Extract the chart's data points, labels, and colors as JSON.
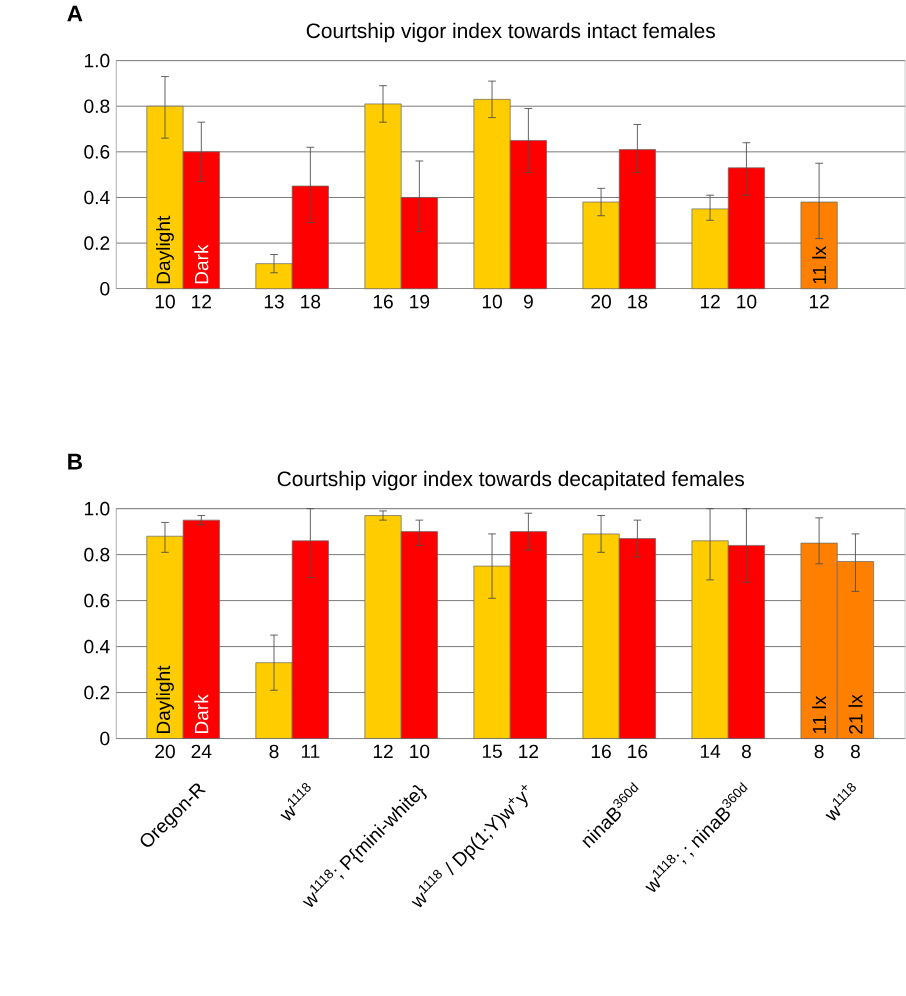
{
  "chart_data": [
    {
      "type": "bar",
      "title": "Courtship vigor index towards intact females",
      "annotations": [
        "A"
      ],
      "categories": [
        "10",
        "12",
        "13",
        "18",
        "16",
        "19",
        "10",
        "9",
        "20",
        "18",
        "12",
        "10",
        "12"
      ],
      "ylim": [
        0,
        1
      ],
      "yticks": [
        0,
        0.2,
        0.4,
        0.6,
        0.8,
        {
          "value": 1,
          "label": "1.0"
        }
      ],
      "grid": "y",
      "series": [
        {
          "name": "Daylight",
          "color": "#ffcc00",
          "values": [
            0.8,
            null,
            0.11,
            null,
            0.81,
            null,
            0.83,
            null,
            0.38,
            null,
            0.35,
            null,
            null
          ],
          "errors": [
            [
              0.66,
              0.93
            ],
            null,
            [
              0.07,
              0.15
            ],
            null,
            [
              0.73,
              0.89
            ],
            null,
            [
              0.75,
              0.91
            ],
            null,
            [
              0.32,
              0.44
            ],
            null,
            [
              0.3,
              0.41
            ],
            null,
            null
          ]
        },
        {
          "name": "Dark",
          "color": "#ff0000",
          "values": [
            null,
            0.6,
            null,
            0.45,
            null,
            0.4,
            null,
            0.65,
            null,
            0.61,
            null,
            0.53,
            null
          ],
          "errors": [
            null,
            [
              0.47,
              0.73
            ],
            null,
            [
              0.29,
              0.62
            ],
            null,
            [
              0.25,
              0.56
            ],
            null,
            [
              0.51,
              0.79
            ],
            null,
            [
              0.51,
              0.72
            ],
            null,
            [
              0.41,
              0.64
            ],
            null
          ]
        },
        {
          "name": "11 lx",
          "color": "#ff8000",
          "values": [
            null,
            null,
            null,
            null,
            null,
            null,
            null,
            null,
            null,
            null,
            null,
            null,
            0.38
          ],
          "errors": [
            null,
            null,
            null,
            null,
            null,
            null,
            null,
            null,
            null,
            null,
            null,
            null,
            [
              0.22,
              0.55
            ]
          ]
        }
      ]
    },
    {
      "type": "bar",
      "title": "Courtship vigor index towards decapitated females",
      "annotations": [
        "B",
        "Oregon-R",
        "w$^{1118}$",
        "w$^{1118}$; P{mini-white}",
        "w$^{1118}$ / Dp(1;Y)w$^{+}$y$^{+}$",
        "ninaB$^{360d}$",
        "w$^{1118}$; ; ninaB$^{360d}$",
        "w$^{1118}$"
      ],
      "categories": [
        "20",
        "24",
        "8",
        "11",
        "12",
        "10",
        "15",
        "12",
        "16",
        "16",
        "14",
        "8",
        "8",
        "8"
      ],
      "ylim": [
        0,
        1
      ],
      "yticks": [
        0,
        0.2,
        0.4,
        0.6,
        0.8,
        {
          "value": 1,
          "label": "1.0"
        }
      ],
      "grid": "y",
      "series": [
        {
          "name": "Daylight",
          "color": "#ffcc00",
          "values": [
            0.88,
            null,
            0.33,
            null,
            0.97,
            null,
            0.75,
            null,
            0.89,
            null,
            0.86,
            null,
            null,
            null
          ],
          "errors": [
            [
              0.81,
              0.94
            ],
            null,
            [
              0.21,
              0.45
            ],
            null,
            [
              0.95,
              0.99
            ],
            null,
            [
              0.61,
              0.89
            ],
            null,
            [
              0.81,
              0.97
            ],
            null,
            [
              0.69,
              1.0
            ],
            null,
            null,
            null
          ]
        },
        {
          "name": "Dark",
          "color": "#ff0000",
          "values": [
            null,
            0.95,
            null,
            0.86,
            null,
            0.9,
            null,
            0.9,
            null,
            0.87,
            null,
            0.84,
            null,
            null
          ],
          "errors": [
            null,
            [
              0.93,
              0.97
            ],
            null,
            [
              0.7,
              1.0
            ],
            null,
            [
              0.84,
              0.95
            ],
            null,
            [
              0.82,
              0.98
            ],
            null,
            [
              0.79,
              0.95
            ],
            null,
            [
              0.68,
              1.0
            ],
            null,
            null
          ]
        },
        {
          "name": "11 lx",
          "color": "#ff8000",
          "values": [
            null,
            null,
            null,
            null,
            null,
            null,
            null,
            null,
            null,
            null,
            null,
            null,
            0.85,
            null
          ],
          "errors": [
            null,
            null,
            null,
            null,
            null,
            null,
            null,
            null,
            null,
            null,
            null,
            null,
            [
              0.76,
              0.96
            ],
            null
          ]
        },
        {
          "name": "21 lx",
          "color": "#ff8000",
          "values": [
            null,
            null,
            null,
            null,
            null,
            null,
            null,
            null,
            null,
            null,
            null,
            null,
            null,
            0.77
          ],
          "errors": [
            null,
            null,
            null,
            null,
            null,
            null,
            null,
            null,
            null,
            null,
            null,
            null,
            null,
            [
              0.64,
              0.89
            ]
          ]
        }
      ]
    }
  ]
}
